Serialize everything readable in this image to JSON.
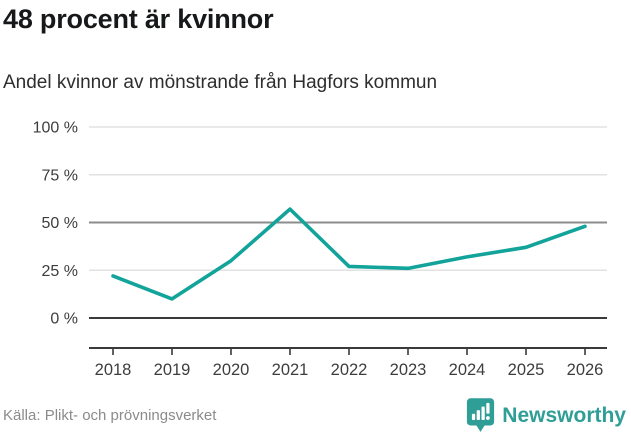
{
  "header": {
    "title": "48 procent är kvinnor",
    "subtitle": "Andel kvinnor av mönstrande från Hagfors kommun"
  },
  "chart_data": {
    "type": "line",
    "title": "48 procent är kvinnor",
    "subtitle": "Andel kvinnor av mönstrande från Hagfors kommun",
    "x": [
      "2018",
      "2019",
      "2020",
      "2021",
      "2022",
      "2023",
      "2024",
      "2025",
      "2026"
    ],
    "series": [
      {
        "name": "Andel kvinnor av mönstrande",
        "values": [
          22,
          10,
          30,
          57,
          27,
          26,
          32,
          37,
          48
        ]
      }
    ],
    "xlabel": "",
    "ylabel": "",
    "ylim": [
      0,
      100
    ],
    "y_ticks": [
      0,
      25,
      50,
      75,
      100
    ],
    "y_tick_suffix": " %",
    "grid": true,
    "legend": "none",
    "emphasized_gridlines": [
      0,
      50
    ],
    "line_color": "#12a39a"
  },
  "footer": {
    "source": "Källa: Plikt- och prövningsverket",
    "brand": "Newsworthy",
    "brand_color": "#2f9e97"
  }
}
